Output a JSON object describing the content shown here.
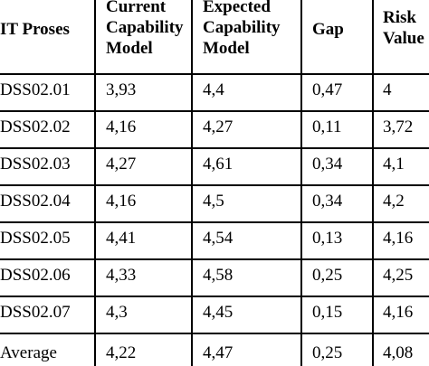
{
  "table": {
    "headers": [
      "IT Proses",
      "Current Capability Model",
      "Expected Capability Model",
      "Gap",
      "Risk Value"
    ],
    "header_lines": [
      [
        "IT Proses"
      ],
      [
        "Current",
        "Capability",
        "Model"
      ],
      [
        "Expected",
        "Capability",
        "Model"
      ],
      [
        "Gap"
      ],
      [
        "Risk",
        "Value"
      ]
    ],
    "rows": [
      [
        "DSS02.01",
        "3,93",
        "4,4",
        "0,47",
        "4"
      ],
      [
        "DSS02.02",
        "4,16",
        "4,27",
        "0,11",
        "3,72"
      ],
      [
        "DSS02.03",
        "4,27",
        "4,61",
        "0,34",
        "4,1"
      ],
      [
        "DSS02.04",
        "4,16",
        "4,5",
        "0,34",
        "4,2"
      ],
      [
        "DSS02.05",
        "4,41",
        "4,54",
        "0,13",
        "4,16"
      ],
      [
        "DSS02.06",
        "4,33",
        "4,58",
        "0,25",
        "4,25"
      ],
      [
        "DSS02.07",
        "4,3",
        "4,45",
        "0,15",
        "4,16"
      ],
      [
        "Average",
        "4,22",
        "4,47",
        "0,25",
        "4,08"
      ]
    ]
  }
}
